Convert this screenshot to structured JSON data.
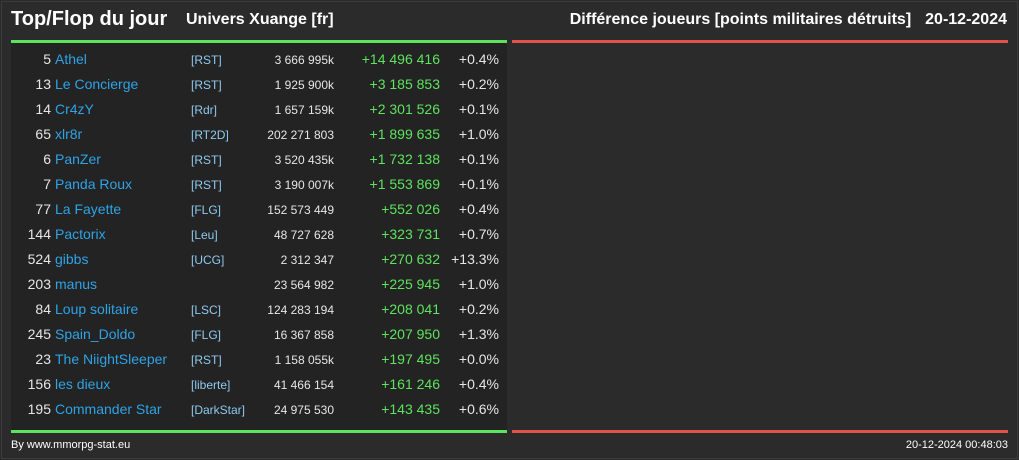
{
  "header": {
    "title": "Top/Flop du jour",
    "universe": "Univers Xuange [fr]",
    "metric": "Différence joueurs [points militaires détruits]",
    "date": "20-12-2024"
  },
  "colors": {
    "positive": "#5de35d",
    "negative": "#e0524a",
    "name_link": "#2ea3e6",
    "tag_link": "#8ec9ee",
    "background": "#2b2b2b"
  },
  "top": [
    {
      "rank": "5",
      "name": "Athel",
      "tag": "[RST]",
      "points": "3 666 995k",
      "delta": "+14 496 416",
      "pct": "+0.4%"
    },
    {
      "rank": "13",
      "name": "Le Concierge",
      "tag": "[RST]",
      "points": "1 925 900k",
      "delta": "+3 185 853",
      "pct": "+0.2%"
    },
    {
      "rank": "14",
      "name": "Cr4zY",
      "tag": "[Rdr]",
      "points": "1 657 159k",
      "delta": "+2 301 526",
      "pct": "+0.1%"
    },
    {
      "rank": "65",
      "name": "xlr8r",
      "tag": "[RT2D]",
      "points": "202 271 803",
      "delta": "+1 899 635",
      "pct": "+1.0%"
    },
    {
      "rank": "6",
      "name": "PanZer",
      "tag": "[RST]",
      "points": "3 520 435k",
      "delta": "+1 732 138",
      "pct": "+0.1%"
    },
    {
      "rank": "7",
      "name": "Panda Roux",
      "tag": "[RST]",
      "points": "3 190 007k",
      "delta": "+1 553 869",
      "pct": "+0.1%"
    },
    {
      "rank": "77",
      "name": "La Fayette",
      "tag": "[FLG]",
      "points": "152 573 449",
      "delta": "+552 026",
      "pct": "+0.4%"
    },
    {
      "rank": "144",
      "name": "Pactorix",
      "tag": "[Leu]",
      "points": "48 727 628",
      "delta": "+323 731",
      "pct": "+0.7%"
    },
    {
      "rank": "524",
      "name": "gibbs",
      "tag": "[UCG]",
      "points": "2 312 347",
      "delta": "+270 632",
      "pct": "+13.3%"
    },
    {
      "rank": "203",
      "name": "manus",
      "tag": "",
      "points": "23 564 982",
      "delta": "+225 945",
      "pct": "+1.0%"
    },
    {
      "rank": "84",
      "name": "Loup solitaire",
      "tag": "[LSC]",
      "points": "124 283 194",
      "delta": "+208 041",
      "pct": "+0.2%"
    },
    {
      "rank": "245",
      "name": "Spain_Doldo",
      "tag": "[FLG]",
      "points": "16 367 858",
      "delta": "+207 950",
      "pct": "+1.3%"
    },
    {
      "rank": "23",
      "name": "The NiightSleeper",
      "tag": "[RST]",
      "points": "1 158 055k",
      "delta": "+197 495",
      "pct": "+0.0%"
    },
    {
      "rank": "156",
      "name": "les dieux",
      "tag": "[liberte]",
      "points": "41 466 154",
      "delta": "+161 246",
      "pct": "+0.4%"
    },
    {
      "rank": "195",
      "name": "Commander Star",
      "tag": "[DarkStar]",
      "points": "24 975 530",
      "delta": "+143 435",
      "pct": "+0.6%"
    }
  ],
  "footer": {
    "credit": "By www.mmorpg-stat.eu",
    "timestamp": "20-12-2024 00:48:03"
  }
}
